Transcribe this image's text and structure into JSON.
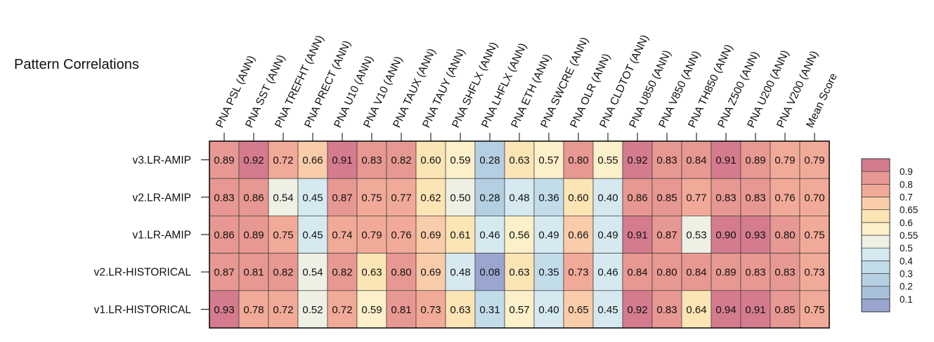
{
  "chart_data": {
    "type": "heatmap",
    "title": "Pattern Correlations",
    "columns": [
      "PNA PSL (ANN)",
      "PNA SST (ANN)",
      "PNA TREFHT (ANN)",
      "PNA PRECT (ANN)",
      "PNA U10 (ANN)",
      "PNA V10 (ANN)",
      "PNA TAUX (ANN)",
      "PNA TAUY (ANN)",
      "PNA SHFLX (ANN)",
      "PNA LHFLX (ANN)",
      "PNA ETH (ANN)",
      "PNA SWCRE (ANN)",
      "PNA OLR (ANN)",
      "PNA CLDTOT (ANN)",
      "PNA U850 (ANN)",
      "PNA V850 (ANN)",
      "PNA TH850 (ANN)",
      "PNA Z500 (ANN)",
      "PNA U200 (ANN)",
      "PNA V200 (ANN)",
      "Mean Score"
    ],
    "rows": [
      "v3.LR-AMIP",
      "v2.LR-AMIP",
      "v1.LR-AMIP",
      "v2.LR-HISTORICAL",
      "v1.LR-HISTORICAL"
    ],
    "values": [
      [
        "0.89",
        "0.92",
        "0.72",
        "0.66",
        "0.91",
        "0.83",
        "0.82",
        "0.60",
        "0.59",
        "0.28",
        "0.63",
        "0.57",
        "0.80",
        "0.55",
        "0.92",
        "0.83",
        "0.84",
        "0.91",
        "0.89",
        "0.79",
        "0.79"
      ],
      [
        "0.83",
        "0.86",
        "0.54",
        "0.45",
        "0.87",
        "0.75",
        "0.77",
        "0.62",
        "0.50",
        "0.28",
        "0.48",
        "0.36",
        "0.60",
        "0.40",
        "0.86",
        "0.85",
        "0.77",
        "0.83",
        "0.83",
        "0.76",
        "0.70"
      ],
      [
        "0.86",
        "0.89",
        "0.75",
        "0.45",
        "0.74",
        "0.79",
        "0.76",
        "0.69",
        "0.61",
        "0.46",
        "0.56",
        "0.49",
        "0.66",
        "0.49",
        "0.91",
        "0.87",
        "0.53",
        "0.90",
        "0.93",
        "0.80",
        "0.75"
      ],
      [
        "0.87",
        "0.81",
        "0.82",
        "0.54",
        "0.82",
        "0.63",
        "0.80",
        "0.69",
        "0.48",
        "0.08",
        "0.63",
        "0.35",
        "0.73",
        "0.46",
        "0.84",
        "0.80",
        "0.84",
        "0.89",
        "0.83",
        "0.83",
        "0.73"
      ],
      [
        "0.93",
        "0.78",
        "0.72",
        "0.52",
        "0.72",
        "0.59",
        "0.81",
        "0.73",
        "0.63",
        "0.31",
        "0.57",
        "0.40",
        "0.65",
        "0.45",
        "0.92",
        "0.83",
        "0.64",
        "0.94",
        "0.91",
        "0.85",
        "0.75"
      ]
    ],
    "colorbar": {
      "levels": [
        "0.1",
        "0.2",
        "0.3",
        "0.4",
        "0.5",
        "0.55",
        "0.6",
        "0.65",
        "0.7",
        "0.8",
        "0.9"
      ],
      "bounds": [
        0,
        0.1,
        0.2,
        0.3,
        0.4,
        0.5,
        0.55,
        0.6,
        0.65,
        0.7,
        0.8,
        0.9,
        1.0
      ],
      "colors": [
        "#9aa6d0",
        "#a9c0db",
        "#b5cfe2",
        "#c2dcea",
        "#d6e9f1",
        "#eef0e4",
        "#fbf0c9",
        "#fce5b5",
        "#f9ccaa",
        "#f2aa98",
        "#e89892",
        "#d57b8e"
      ]
    }
  }
}
